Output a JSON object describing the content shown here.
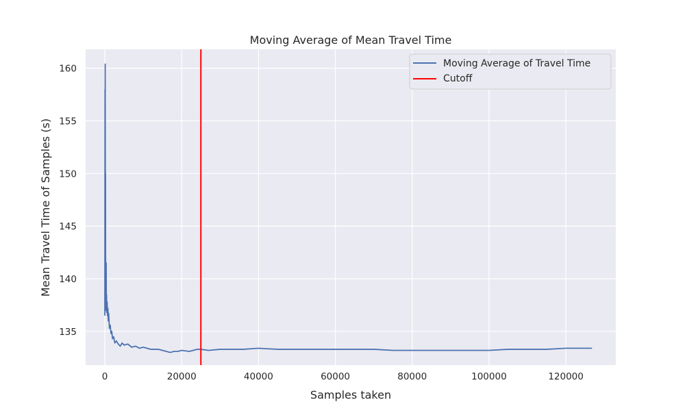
{
  "chart_data": {
    "type": "line",
    "title": "Moving Average of Mean Travel Time",
    "xlabel": "Samples taken",
    "ylabel": "Mean Travel Time of Samples (s)",
    "xlim": [
      -5000,
      133000
    ],
    "ylim": [
      131.8,
      161.8
    ],
    "x_ticks": [
      0,
      20000,
      40000,
      60000,
      80000,
      100000,
      120000
    ],
    "x_tick_labels": [
      "0",
      "20000",
      "40000",
      "60000",
      "80000",
      "100000",
      "120000"
    ],
    "y_ticks": [
      135,
      140,
      145,
      150,
      155,
      160
    ],
    "y_tick_labels": [
      "135",
      "140",
      "145",
      "150",
      "155",
      "160"
    ],
    "grid": true,
    "legend_position": "top-right",
    "background_color": "#eaeaf2",
    "series": [
      {
        "name": "Moving Average of Travel Time",
        "color": "#4c72b0",
        "x": [
          0,
          50,
          80,
          100,
          120,
          150,
          180,
          200,
          250,
          300,
          350,
          400,
          450,
          500,
          600,
          700,
          800,
          900,
          1000,
          1200,
          1400,
          1600,
          1800,
          2000,
          2300,
          2600,
          3000,
          3500,
          4000,
          4500,
          5000,
          6000,
          7000,
          8000,
          9000,
          10000,
          12000,
          14000,
          16000,
          17000,
          18000,
          19000,
          20000,
          22000,
          24000,
          25000,
          27000,
          30000,
          33000,
          36000,
          40000,
          45000,
          50000,
          55000,
          60000,
          65000,
          70000,
          75000,
          80000,
          85000,
          90000,
          95000,
          100000,
          105000,
          110000,
          115000,
          120000,
          123000,
          126800
        ],
        "y": [
          136.5,
          158.0,
          148.0,
          160.4,
          152.0,
          146.0,
          150.0,
          142.0,
          140.0,
          137.0,
          141.5,
          137.0,
          138.5,
          136.8,
          137.8,
          136.5,
          137.2,
          136.0,
          136.7,
          135.3,
          135.6,
          134.8,
          135.0,
          134.3,
          134.5,
          133.9,
          134.1,
          133.8,
          133.6,
          133.9,
          133.7,
          133.8,
          133.5,
          133.6,
          133.4,
          133.5,
          133.3,
          133.3,
          133.1,
          133.0,
          133.1,
          133.1,
          133.2,
          133.1,
          133.3,
          133.3,
          133.2,
          133.3,
          133.3,
          133.3,
          133.4,
          133.3,
          133.3,
          133.3,
          133.3,
          133.3,
          133.3,
          133.2,
          133.2,
          133.2,
          133.2,
          133.2,
          133.2,
          133.3,
          133.3,
          133.3,
          133.4,
          133.4,
          133.4
        ]
      }
    ],
    "vlines": [
      {
        "name": "Cutoff",
        "x": 25000,
        "color": "#ff0000"
      }
    ]
  }
}
